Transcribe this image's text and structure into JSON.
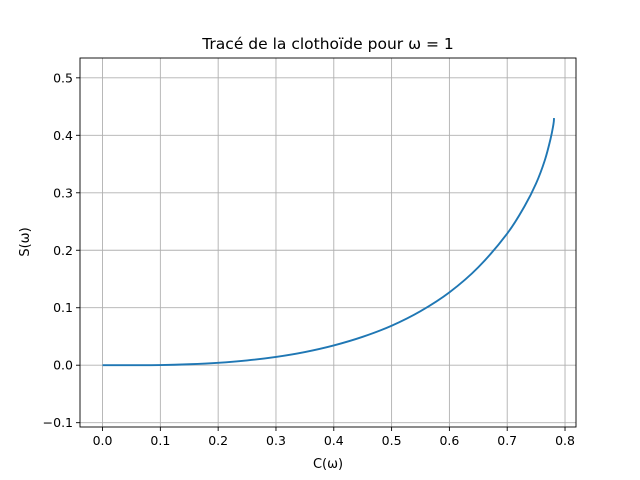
{
  "chart_data": {
    "type": "line",
    "title": "Tracé de la clothoïde pour ω = 1",
    "xlabel": "C(ω)",
    "ylabel": "S(ω)",
    "xlim": [
      -0.039,
      0.819
    ],
    "ylim": [
      -0.1075,
      0.5345
    ],
    "xticks": [
      0.0,
      0.1,
      0.2,
      0.3,
      0.4,
      0.5,
      0.6,
      0.7,
      0.8
    ],
    "xtick_labels": [
      "0.0",
      "0.1",
      "0.2",
      "0.3",
      "0.4",
      "0.5",
      "0.6",
      "0.7",
      "0.8"
    ],
    "yticks": [
      -0.1,
      0.0,
      0.1,
      0.2,
      0.3,
      0.4,
      0.5
    ],
    "ytick_labels": [
      "−0.1",
      "0.0",
      "0.1",
      "0.2",
      "0.3",
      "0.4",
      "0.5"
    ],
    "grid": true,
    "series": [
      {
        "color": "#1f77b4",
        "x": [
          0.0,
          0.05,
          0.1,
          0.15,
          0.2,
          0.25,
          0.3,
          0.35,
          0.4,
          0.45,
          0.5,
          0.55,
          0.6,
          0.65,
          0.7,
          0.73,
          0.75,
          0.765,
          0.775,
          0.78,
          0.781
        ],
        "y": [
          0.0,
          0.0,
          0.0003,
          0.0017,
          0.0042,
          0.0083,
          0.0144,
          0.0229,
          0.0344,
          0.0494,
          0.0687,
          0.094,
          0.1267,
          0.1704,
          0.2291,
          0.2766,
          0.3163,
          0.3564,
          0.3939,
          0.4193,
          0.43
        ]
      }
    ]
  }
}
